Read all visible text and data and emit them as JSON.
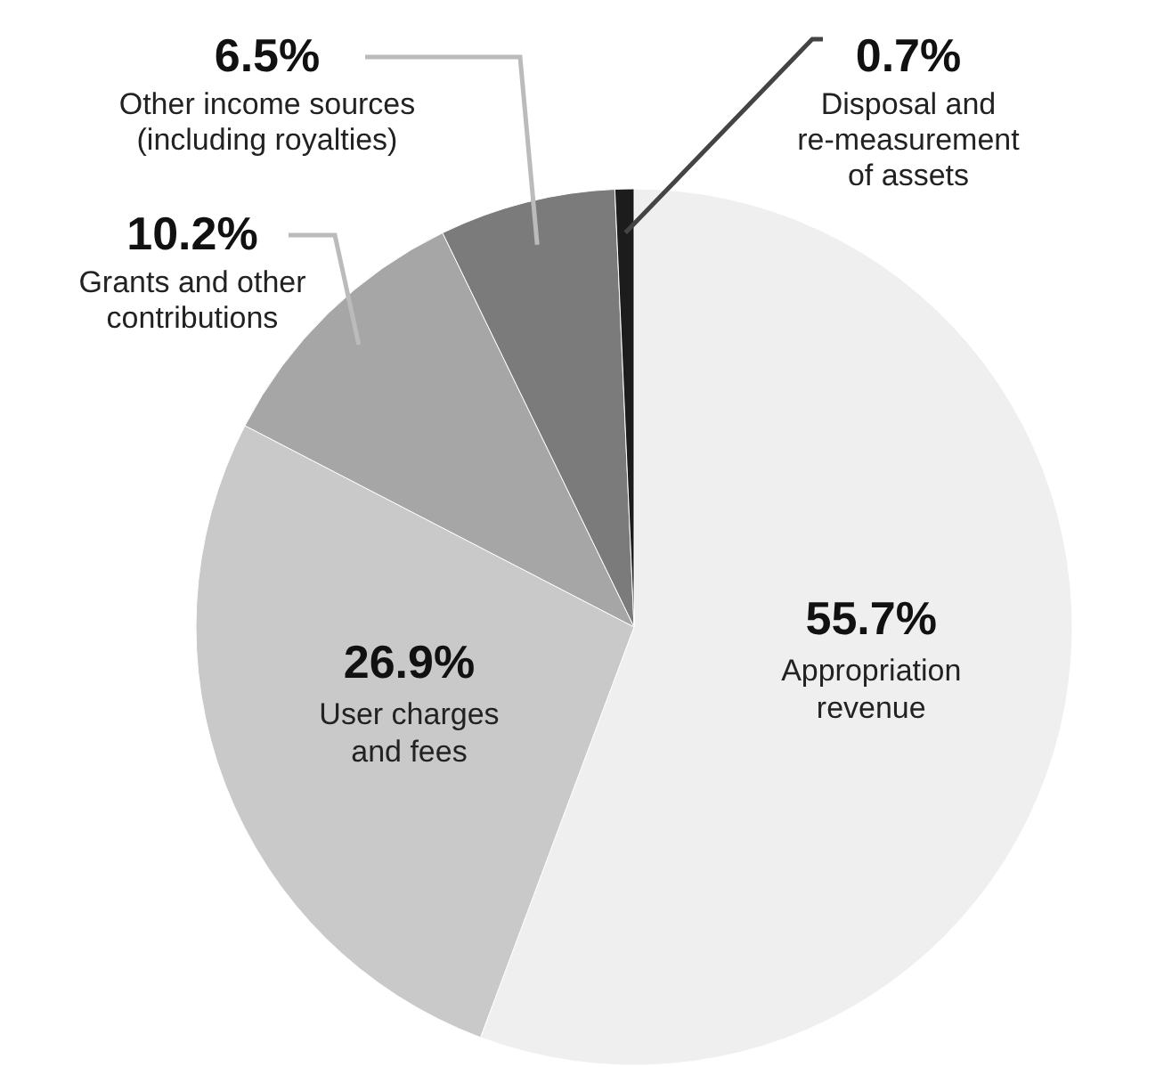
{
  "chart_data": {
    "type": "pie",
    "categories": [
      "Appropriation revenue",
      "User charges and fees",
      "Grants and other contributions",
      "Other income sources (including royalties)",
      "Disposal and re-measurement of assets"
    ],
    "values": [
      55.7,
      26.9,
      10.2,
      6.5,
      0.7
    ],
    "colors": [
      "#efefef",
      "#c9c9c9",
      "#a6a6a6",
      "#7b7b7b",
      "#1c1c1c"
    ],
    "value_labels": [
      "55.7%",
      "26.9%",
      "10.2%",
      "6.5%",
      "0.7%"
    ]
  }
}
